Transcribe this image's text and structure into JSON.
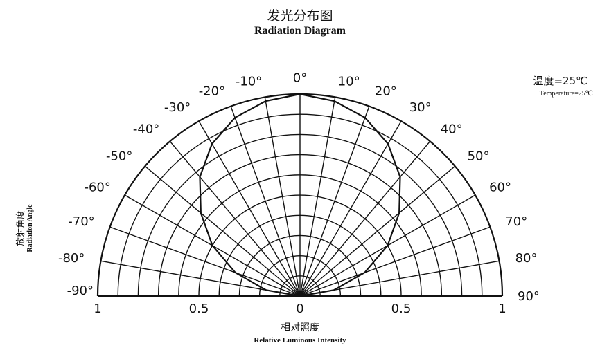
{
  "chart_data": {
    "type": "polar",
    "title": "发光分布图",
    "subtitle": "Radiation Diagram",
    "annotation_cn": "温度=25℃",
    "annotation_en": "Temperature=25℃",
    "xlabel_cn": "相对照度",
    "xlabel_en": "Relative Luminous Intensity",
    "ylabel_cn": "放射角度",
    "ylabel_en": "Radiation Angle",
    "angle_range": [
      -90,
      90
    ],
    "angle_step": 10,
    "radial_range": [
      0,
      1
    ],
    "radial_ticks": [
      0.1,
      0.2,
      0.3,
      0.4,
      0.5,
      0.6,
      0.7,
      0.8,
      0.9,
      1.0
    ],
    "angle_labels_left": [
      "-90°",
      "-80°",
      "-70°",
      "-60°",
      "-50°",
      "-40°",
      "-30°",
      "-20°",
      "-10°"
    ],
    "angle_labels_right": [
      "0°",
      "10°",
      "20°",
      "30°",
      "40°",
      "50°",
      "60°",
      "70°",
      "80°",
      "90°"
    ],
    "radial_tick_labels": [
      "1",
      "0.5",
      "0",
      "0.5",
      "1"
    ],
    "series": [
      {
        "angles": [
          -90,
          -80,
          -70,
          -60,
          -50,
          -40,
          -30,
          -20,
          -10,
          0,
          10,
          20,
          30,
          40,
          50,
          60,
          70,
          80,
          90
        ],
        "values": [
          0,
          0.17,
          0.34,
          0.5,
          0.64,
          0.77,
          0.87,
          0.94,
          0.98,
          1,
          0.98,
          0.94,
          0.87,
          0.77,
          0.64,
          0.5,
          0.34,
          0.17,
          0
        ]
      }
    ]
  }
}
